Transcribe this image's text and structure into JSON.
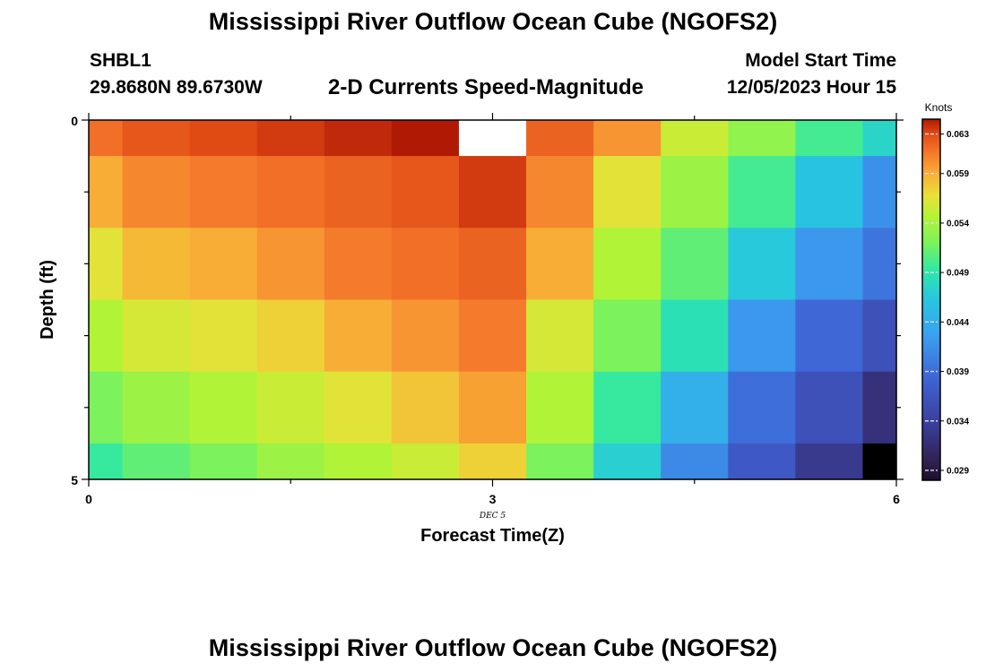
{
  "header": {
    "title": "Mississippi River Outflow Ocean Cube (NGOFS2)",
    "station": "SHBL1",
    "coords": "29.8680N  89.6730W",
    "subtitle": "2-D Currents Speed-Magnitude",
    "model_start_label": "Model Start Time",
    "model_start_value": "12/05/2023 Hour 15"
  },
  "footer": {
    "title": "Mississippi River Outflow Ocean Cube (NGOFS2)"
  },
  "chart_data": {
    "type": "heatmap",
    "xlabel": "Forecast Time(Z)",
    "ylabel": "Depth (ft)",
    "x_ticks": [
      "0",
      "3",
      "6"
    ],
    "x_date_label": "DEC 5",
    "y_ticks": [
      "0",
      "5"
    ],
    "xlim": [
      0,
      6
    ],
    "ylim": [
      0,
      5
    ],
    "colorbar": {
      "unit": "Knots",
      "ticks": [
        0.063,
        0.059,
        0.054,
        0.049,
        0.044,
        0.039,
        0.034,
        0.029
      ],
      "tick_labels": [
        "0.063",
        "0.059",
        "0.054",
        "0.049",
        "0.044",
        "0.039",
        "0.034",
        "0.029"
      ],
      "min": 0.028,
      "max": 0.0645
    },
    "x_centers": [
      0,
      0.5,
      1,
      1.5,
      2,
      2.5,
      3,
      3.5,
      4,
      4.5,
      5,
      5.5,
      6
    ],
    "depth_centers": [
      0,
      1,
      2,
      3,
      4,
      5
    ],
    "values": [
      [
        0.0615,
        0.0625,
        0.063,
        0.0635,
        0.064,
        0.0645,
        null,
        0.062,
        0.06,
        0.0555,
        0.053,
        0.05,
        0.0475
      ],
      [
        0.059,
        0.0605,
        0.061,
        0.0615,
        0.062,
        0.0625,
        0.0635,
        0.0605,
        0.0565,
        0.0535,
        0.05,
        0.046,
        0.0415
      ],
      [
        0.0565,
        0.0585,
        0.059,
        0.06,
        0.061,
        0.0615,
        0.062,
        0.059,
        0.0545,
        0.051,
        0.0465,
        0.042,
        0.0395
      ],
      [
        0.0545,
        0.056,
        0.0565,
        0.0575,
        0.059,
        0.06,
        0.061,
        0.056,
        0.052,
        0.0485,
        0.042,
        0.0385,
        0.036
      ],
      [
        0.052,
        0.0535,
        0.0545,
        0.0555,
        0.0565,
        0.058,
        0.0595,
        0.0545,
        0.0495,
        0.044,
        0.039,
        0.036,
        0.032
      ],
      [
        0.0495,
        0.051,
        0.052,
        0.0535,
        0.0545,
        0.0555,
        0.0575,
        0.052,
        0.047,
        0.041,
        0.037,
        0.033,
        0.028
      ]
    ]
  }
}
